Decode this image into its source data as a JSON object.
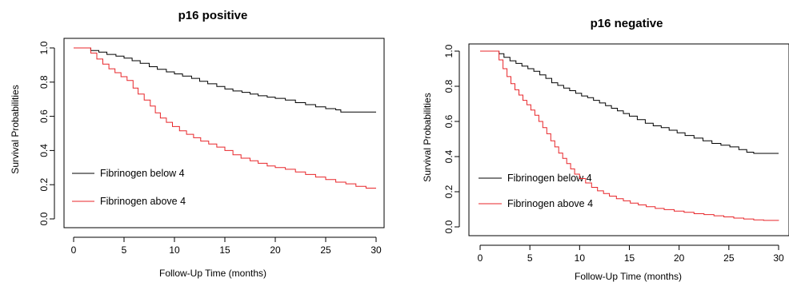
{
  "figure": {
    "colors": {
      "below": "#000000",
      "above": "#e8262a",
      "frame": "#000000"
    }
  },
  "chart_data": [
    {
      "type": "line",
      "title": "p16 positive",
      "xlabel": "Follow-Up Time (months)",
      "ylabel": "Survival Probabilities",
      "xlim": [
        0,
        30
      ],
      "ylim": [
        0,
        1
      ],
      "xticks": [
        "0",
        "5",
        "10",
        "15",
        "20",
        "25",
        "30"
      ],
      "yticks": [
        "0.0",
        "0.2",
        "0.4",
        "0.6",
        "0.8",
        "1.0"
      ],
      "legend_position": "bottom-left",
      "step": true,
      "series": [
        {
          "name": "Fibrinogen below 4",
          "color": "#000000",
          "points": [
            [
              0,
              1.0
            ],
            [
              1.2,
              1.0
            ],
            [
              1.7,
              0.985
            ],
            [
              2.5,
              0.975
            ],
            [
              3.3,
              0.962
            ],
            [
              4.2,
              0.952
            ],
            [
              5.0,
              0.94
            ],
            [
              5.8,
              0.925
            ],
            [
              6.6,
              0.91
            ],
            [
              7.5,
              0.89
            ],
            [
              8.3,
              0.875
            ],
            [
              9.2,
              0.86
            ],
            [
              10.0,
              0.848
            ],
            [
              10.8,
              0.835
            ],
            [
              11.7,
              0.822
            ],
            [
              12.5,
              0.805
            ],
            [
              13.3,
              0.79
            ],
            [
              14.2,
              0.775
            ],
            [
              15.0,
              0.76
            ],
            [
              15.8,
              0.748
            ],
            [
              16.7,
              0.74
            ],
            [
              17.5,
              0.73
            ],
            [
              18.3,
              0.72
            ],
            [
              19.2,
              0.712
            ],
            [
              20.0,
              0.705
            ],
            [
              21.0,
              0.695
            ],
            [
              22.0,
              0.68
            ],
            [
              23.0,
              0.668
            ],
            [
              24.0,
              0.655
            ],
            [
              25.0,
              0.645
            ],
            [
              26.0,
              0.638
            ],
            [
              26.5,
              0.625
            ],
            [
              30.0,
              0.625
            ]
          ]
        },
        {
          "name": "Fibrinogen above 4",
          "color": "#e8262a",
          "points": [
            [
              0,
              1.0
            ],
            [
              1.2,
              1.0
            ],
            [
              1.7,
              0.97
            ],
            [
              2.3,
              0.935
            ],
            [
              2.9,
              0.905
            ],
            [
              3.5,
              0.878
            ],
            [
              4.1,
              0.855
            ],
            [
              4.7,
              0.832
            ],
            [
              5.3,
              0.81
            ],
            [
              5.9,
              0.765
            ],
            [
              6.4,
              0.73
            ],
            [
              7.0,
              0.695
            ],
            [
              7.6,
              0.66
            ],
            [
              8.1,
              0.62
            ],
            [
              8.6,
              0.59
            ],
            [
              9.2,
              0.565
            ],
            [
              9.8,
              0.54
            ],
            [
              10.5,
              0.515
            ],
            [
              11.2,
              0.495
            ],
            [
              11.9,
              0.475
            ],
            [
              12.6,
              0.455
            ],
            [
              13.4,
              0.438
            ],
            [
              14.2,
              0.42
            ],
            [
              15.0,
              0.4
            ],
            [
              15.8,
              0.375
            ],
            [
              16.6,
              0.355
            ],
            [
              17.5,
              0.34
            ],
            [
              18.3,
              0.325
            ],
            [
              19.2,
              0.31
            ],
            [
              20.0,
              0.3
            ],
            [
              21.0,
              0.29
            ],
            [
              22.0,
              0.275
            ],
            [
              23.0,
              0.26
            ],
            [
              24.0,
              0.245
            ],
            [
              25.0,
              0.23
            ],
            [
              26.0,
              0.215
            ],
            [
              27.0,
              0.205
            ],
            [
              28.0,
              0.19
            ],
            [
              29.0,
              0.18
            ],
            [
              30.0,
              0.18
            ]
          ]
        }
      ]
    },
    {
      "type": "line",
      "title": "p16 negative",
      "xlabel": "Follow-Up Time (months)",
      "ylabel": "Survival Probabilities",
      "xlim": [
        0,
        30
      ],
      "ylim": [
        0,
        1
      ],
      "xticks": [
        "0",
        "5",
        "10",
        "15",
        "20",
        "25",
        "30"
      ],
      "yticks": [
        "0.0",
        "0.2",
        "0.4",
        "0.6",
        "0.8",
        "1.0"
      ],
      "legend_position": "bottom-left",
      "step": true,
      "series": [
        {
          "name": "Fibrinogen below 4",
          "color": "#000000",
          "points": [
            [
              0,
              1.0
            ],
            [
              1.5,
              1.0
            ],
            [
              1.9,
              0.985
            ],
            [
              2.4,
              0.965
            ],
            [
              3.0,
              0.945
            ],
            [
              3.6,
              0.93
            ],
            [
              4.2,
              0.915
            ],
            [
              4.8,
              0.9
            ],
            [
              5.4,
              0.885
            ],
            [
              6.0,
              0.865
            ],
            [
              6.6,
              0.845
            ],
            [
              7.2,
              0.82
            ],
            [
              7.8,
              0.805
            ],
            [
              8.4,
              0.79
            ],
            [
              9.0,
              0.775
            ],
            [
              9.6,
              0.76
            ],
            [
              10.2,
              0.745
            ],
            [
              10.8,
              0.735
            ],
            [
              11.4,
              0.72
            ],
            [
              12.0,
              0.705
            ],
            [
              12.6,
              0.69
            ],
            [
              13.2,
              0.675
            ],
            [
              13.8,
              0.66
            ],
            [
              14.4,
              0.645
            ],
            [
              15.0,
              0.63
            ],
            [
              15.8,
              0.61
            ],
            [
              16.6,
              0.59
            ],
            [
              17.4,
              0.575
            ],
            [
              18.2,
              0.565
            ],
            [
              19.0,
              0.55
            ],
            [
              19.8,
              0.535
            ],
            [
              20.6,
              0.52
            ],
            [
              21.5,
              0.505
            ],
            [
              22.4,
              0.49
            ],
            [
              23.3,
              0.475
            ],
            [
              24.2,
              0.465
            ],
            [
              25.1,
              0.455
            ],
            [
              26.0,
              0.44
            ],
            [
              26.8,
              0.425
            ],
            [
              27.5,
              0.418
            ],
            [
              30.0,
              0.418
            ]
          ]
        },
        {
          "name": "Fibrinogen above 4",
          "color": "#e8262a",
          "points": [
            [
              0,
              1.0
            ],
            [
              1.5,
              1.0
            ],
            [
              1.9,
              0.95
            ],
            [
              2.3,
              0.9
            ],
            [
              2.7,
              0.855
            ],
            [
              3.1,
              0.815
            ],
            [
              3.5,
              0.78
            ],
            [
              3.9,
              0.75
            ],
            [
              4.3,
              0.72
            ],
            [
              4.7,
              0.695
            ],
            [
              5.1,
              0.665
            ],
            [
              5.5,
              0.635
            ],
            [
              5.9,
              0.6
            ],
            [
              6.3,
              0.565
            ],
            [
              6.7,
              0.53
            ],
            [
              7.1,
              0.49
            ],
            [
              7.5,
              0.455
            ],
            [
              7.9,
              0.42
            ],
            [
              8.3,
              0.39
            ],
            [
              8.7,
              0.36
            ],
            [
              9.1,
              0.33
            ],
            [
              9.5,
              0.3
            ],
            [
              10.0,
              0.275
            ],
            [
              10.6,
              0.25
            ],
            [
              11.2,
              0.225
            ],
            [
              11.8,
              0.205
            ],
            [
              12.4,
              0.19
            ],
            [
              13.0,
              0.175
            ],
            [
              13.7,
              0.16
            ],
            [
              14.4,
              0.148
            ],
            [
              15.1,
              0.135
            ],
            [
              15.9,
              0.125
            ],
            [
              16.7,
              0.115
            ],
            [
              17.6,
              0.105
            ],
            [
              18.5,
              0.098
            ],
            [
              19.5,
              0.09
            ],
            [
              20.5,
              0.083
            ],
            [
              21.5,
              0.075
            ],
            [
              22.5,
              0.07
            ],
            [
              23.5,
              0.063
            ],
            [
              24.5,
              0.057
            ],
            [
              25.5,
              0.05
            ],
            [
              26.5,
              0.045
            ],
            [
              27.5,
              0.04
            ],
            [
              28.5,
              0.037
            ],
            [
              30.0,
              0.035
            ]
          ]
        }
      ]
    }
  ]
}
